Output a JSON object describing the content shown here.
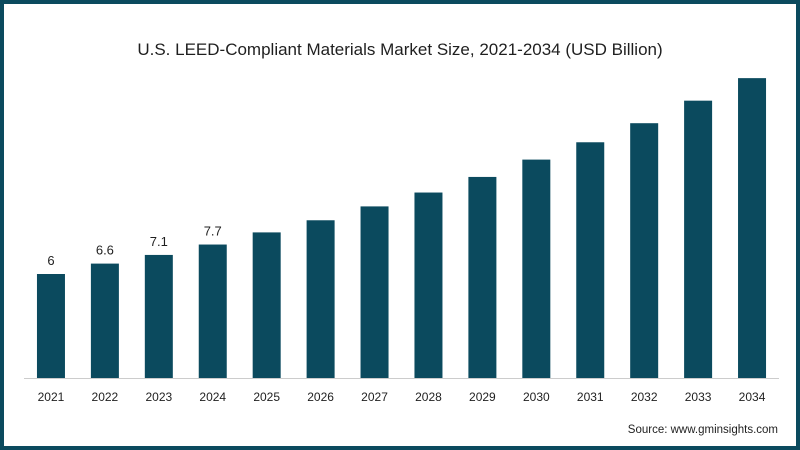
{
  "chart_data": {
    "type": "bar",
    "title": "U.S. LEED-Compliant Materials Market Size, 2021-2034 (USD Billion)",
    "categories": [
      "2021",
      "2022",
      "2023",
      "2024",
      "2025",
      "2026",
      "2027",
      "2028",
      "2029",
      "2030",
      "2031",
      "2032",
      "2033",
      "2034"
    ],
    "values": [
      6,
      6.6,
      7.1,
      7.7,
      8.4,
      9.1,
      9.9,
      10.7,
      11.6,
      12.6,
      13.6,
      14.7,
      16.0,
      17.3
    ],
    "data_labels": [
      "6",
      "6.6",
      "7.1",
      "7.7",
      null,
      null,
      null,
      null,
      null,
      null,
      null,
      null,
      null,
      null
    ],
    "ylim": [
      0,
      18
    ],
    "grid": false,
    "legend": "none",
    "bar_color": "#0b4a5e"
  },
  "source": "Source: www.gminsights.com",
  "colors": {
    "frame": "#0b4a5e",
    "axis": "#cccccc",
    "text": "#1f1f1f"
  }
}
